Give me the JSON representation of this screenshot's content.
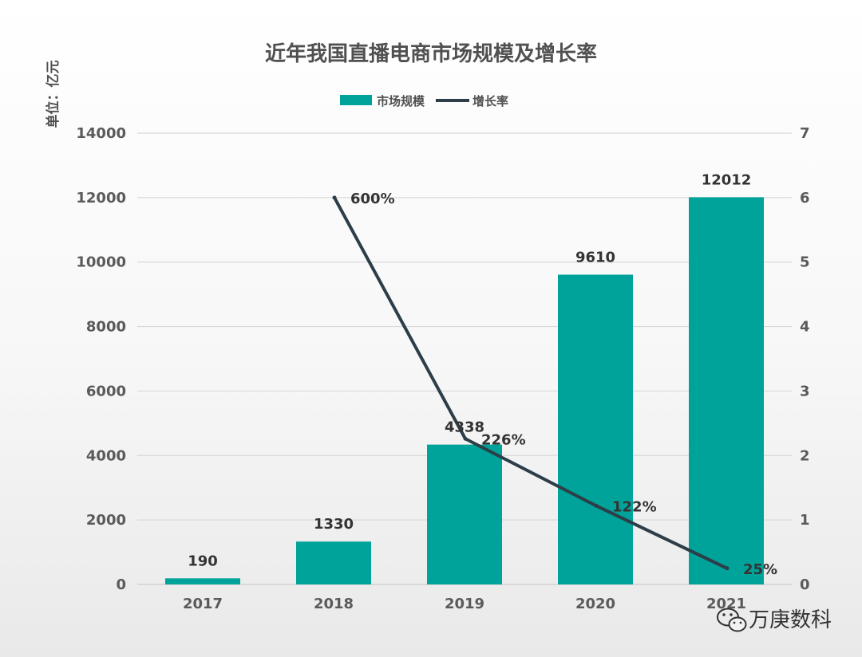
{
  "chart_data": {
    "type": "bar",
    "title": "近年我国直播电商市场规模及增长率",
    "unit_label": "单位：亿元",
    "categories": [
      "2017",
      "2018",
      "2019",
      "2020",
      "2021"
    ],
    "series": [
      {
        "name": "市场规模",
        "type": "bar",
        "axis": "left",
        "values": [
          190,
          1330,
          4338,
          9610,
          12012
        ],
        "labels": [
          "190",
          "1330",
          "4338",
          "9610",
          "12012"
        ]
      },
      {
        "name": "增长率",
        "type": "line",
        "axis": "right",
        "values": [
          null,
          6.0,
          2.26,
          1.22,
          0.25
        ],
        "labels": [
          "",
          "600%",
          "226%",
          "122%",
          "25%"
        ]
      }
    ],
    "ylim_left": [
      0,
      14000
    ],
    "yticks_left": [
      "0",
      "2000",
      "4000",
      "6000",
      "8000",
      "10000",
      "12000",
      "14000"
    ],
    "ylim_right": [
      0,
      7
    ],
    "yticks_right": [
      "0",
      "1",
      "2",
      "3",
      "4",
      "5",
      "6",
      "7"
    ],
    "legend_position": "top-center",
    "grid": true,
    "colors": {
      "bar": "#00a39a",
      "line": "#2d3e48",
      "grid": "#d9d9d9",
      "text": "#505050"
    }
  },
  "watermark": {
    "text": "万庚数科",
    "icon": "wechat-icon"
  }
}
